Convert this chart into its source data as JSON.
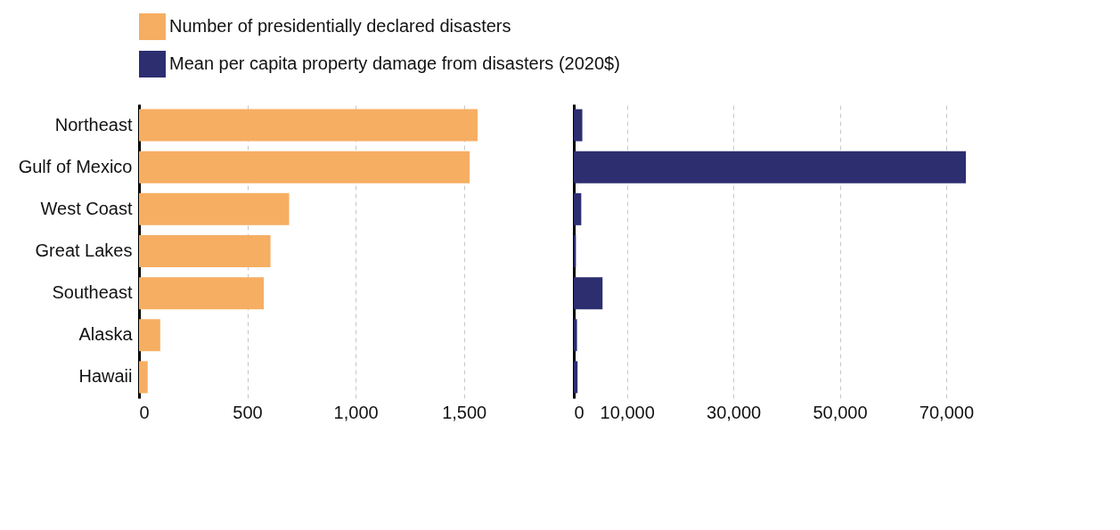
{
  "chart_data": [
    {
      "type": "bar",
      "orientation": "horizontal",
      "categories": [
        "Northeast",
        "Gulf of Mexico",
        "West Coast",
        "Great Lakes",
        "Southeast",
        "Alaska",
        "Hawaii"
      ],
      "series": [
        {
          "name": "Number of presidentially declared disasters",
          "color": "#f6ae62",
          "values": [
            1563,
            1526,
            693,
            607,
            576,
            98,
            40
          ]
        }
      ],
      "xlim": [
        0,
        1563
      ],
      "xticks": [
        0,
        500,
        {
          "value": 1000,
          "label": "1,000"
        },
        {
          "value": 1500,
          "label": "1,500"
        }
      ],
      "grid": "x",
      "legend": "top"
    },
    {
      "type": "bar",
      "orientation": "horizontal",
      "categories": [
        null,
        null,
        null,
        null,
        null,
        null,
        null
      ],
      "series": [
        {
          "name": "Mean per capita property damage from disasters (2020$)",
          "color": "#2c2e70",
          "values": [
            1600,
            73700,
            1400,
            400,
            5400,
            600,
            700
          ]
        }
      ],
      "xlim": [
        0,
        73700
      ],
      "xticks": [
        0,
        {
          "value": 10000,
          "label": "10,000"
        },
        {
          "value": 30000,
          "label": "30,000"
        },
        {
          "value": 50000,
          "label": "50,000"
        },
        {
          "value": 70000,
          "label": "70,000"
        }
      ],
      "grid": "x",
      "legend": "top"
    }
  ]
}
